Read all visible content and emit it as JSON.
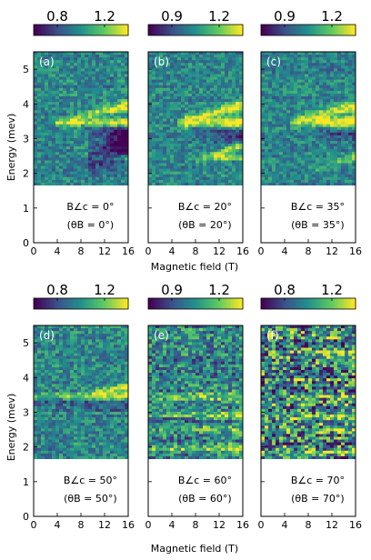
{
  "figure": {
    "xlabel": "Magnetic field (T)",
    "ylabel": "Energy (mev)",
    "colormap": [
      "#440154",
      "#3b528b",
      "#21918c",
      "#5ec962",
      "#fde725"
    ],
    "gap_color": "#ffffff"
  },
  "chart_data": [
    {
      "type": "heatmap",
      "panel_label": "(a)",
      "orientation_text": "B∠c = 0°",
      "theta_text": "(θB = 0°)",
      "xlim": [
        0,
        16
      ],
      "ylim": [
        0,
        5.5
      ],
      "xticks": [
        0,
        4,
        8,
        12,
        16
      ],
      "yticks": [
        0,
        1,
        2,
        3,
        4,
        5
      ],
      "data_range_y": [
        1.65,
        5.5
      ],
      "colorbar": {
        "ticks": [
          0.8,
          1.2
        ],
        "tick_labels": [
          "0.8",
          "1.2"
        ],
        "range": [
          0.6,
          1.4
        ]
      },
      "features": [
        {
          "kind": "band",
          "y0": 3.45,
          "y1": 3.45,
          "x_from": 4,
          "strength": 0.85,
          "width": 0.1
        },
        {
          "kind": "band",
          "y0": 3.55,
          "y1": 3.95,
          "x_from": 6,
          "strength": 0.6,
          "width": 0.12
        },
        {
          "kind": "dark",
          "y0": 3.4,
          "y1": 3.2,
          "x_from": 8,
          "strength": 0.4,
          "width": 0.25
        },
        {
          "kind": "dark",
          "y0": 2.3,
          "y1": 2.9,
          "x_from": 9,
          "strength": 0.5,
          "width": 0.35
        },
        {
          "kind": "band",
          "y0": 2.45,
          "y1": 2.45,
          "x_from": 10,
          "strength": 0.45,
          "width": 0.05
        }
      ],
      "noise": 0.35
    },
    {
      "type": "heatmap",
      "panel_label": "(b)",
      "orientation_text": "B∠c = 20°",
      "theta_text": "(θB = 20°)",
      "xlim": [
        0,
        16
      ],
      "ylim": [
        0,
        5.5
      ],
      "xticks": [
        0,
        4,
        8,
        12,
        16
      ],
      "yticks": [
        0,
        1,
        2,
        3,
        4,
        5
      ],
      "data_range_y": [
        1.65,
        5.5
      ],
      "colorbar": {
        "ticks": [
          0.9,
          1.2
        ],
        "tick_labels": [
          "0.9",
          "1.2"
        ],
        "range": [
          0.75,
          1.35
        ]
      },
      "features": [
        {
          "kind": "band",
          "y0": 3.45,
          "y1": 3.45,
          "x_from": 5,
          "strength": 0.95,
          "width": 0.12
        },
        {
          "kind": "band",
          "y0": 3.55,
          "y1": 3.95,
          "x_from": 6,
          "strength": 0.6,
          "width": 0.12
        },
        {
          "kind": "dark",
          "y0": 3.4,
          "y1": 3.2,
          "x_from": 7,
          "strength": 0.4,
          "width": 0.25
        },
        {
          "kind": "band",
          "y0": 2.35,
          "y1": 2.8,
          "x_from": 8,
          "strength": 0.55,
          "width": 0.1
        },
        {
          "kind": "band",
          "y0": 2.45,
          "y1": 2.45,
          "x_from": 11,
          "strength": 0.7,
          "width": 0.05
        }
      ],
      "noise": 0.35
    },
    {
      "type": "heatmap",
      "panel_label": "(c)",
      "orientation_text": "B∠c = 35°",
      "theta_text": "(θB = 35°)",
      "xlim": [
        0,
        16
      ],
      "ylim": [
        0,
        5.5
      ],
      "xticks": [
        0,
        4,
        8,
        12,
        16
      ],
      "yticks": [
        0,
        1,
        2,
        3,
        4,
        5
      ],
      "data_range_y": [
        1.65,
        5.5
      ],
      "colorbar": {
        "ticks": [
          0.9,
          1.2
        ],
        "tick_labels": [
          "0.9",
          "1.2"
        ],
        "range": [
          0.75,
          1.35
        ]
      },
      "features": [
        {
          "kind": "band",
          "y0": 3.45,
          "y1": 3.45,
          "x_from": 5,
          "strength": 0.95,
          "width": 0.12
        },
        {
          "kind": "band",
          "y0": 3.55,
          "y1": 3.95,
          "x_from": 6,
          "strength": 0.6,
          "width": 0.12
        },
        {
          "kind": "dark",
          "y0": 3.4,
          "y1": 3.25,
          "x_from": 7,
          "strength": 0.35,
          "width": 0.2
        },
        {
          "kind": "band",
          "y0": 2.1,
          "y1": 2.5,
          "x_from": 9,
          "strength": 0.4,
          "width": 0.1
        }
      ],
      "noise": 0.35
    },
    {
      "type": "heatmap",
      "panel_label": "(d)",
      "orientation_text": "B∠c = 50°",
      "theta_text": "(θB = 50°)",
      "xlim": [
        0,
        16
      ],
      "ylim": [
        0,
        5.5
      ],
      "xticks": [
        0,
        4,
        8,
        12,
        16
      ],
      "yticks": [
        0,
        1,
        2,
        3,
        4,
        5
      ],
      "data_range_y": [
        1.65,
        5.5
      ],
      "colorbar": {
        "ticks": [
          0.8,
          1.2
        ],
        "tick_labels": [
          "0.8",
          "1.2"
        ],
        "range": [
          0.6,
          1.4
        ]
      },
      "features": [
        {
          "kind": "band",
          "y0": 3.45,
          "y1": 3.45,
          "x_from": 0,
          "strength": 0.65,
          "width": 0.1
        },
        {
          "kind": "band",
          "y0": 3.55,
          "y1": 3.75,
          "x_from": 10,
          "strength": 0.5,
          "width": 0.1
        },
        {
          "kind": "dark",
          "y0": 3.3,
          "y1": 3.3,
          "x_from": 0,
          "strength": 0.3,
          "width": 0.15
        }
      ],
      "noise": 0.4
    },
    {
      "type": "heatmap",
      "panel_label": "(e)",
      "orientation_text": "B∠c = 60°",
      "theta_text": "(θB = 60°)",
      "xlim": [
        0,
        16
      ],
      "ylim": [
        0,
        5.5
      ],
      "xticks": [
        0,
        4,
        8,
        12,
        16
      ],
      "yticks": [
        0,
        1,
        2,
        3,
        4,
        5
      ],
      "data_range_y": [
        1.65,
        5.5
      ],
      "colorbar": {
        "ticks": [
          0.9,
          1.2
        ],
        "tick_labels": [
          "0.9",
          "1.2"
        ],
        "range": [
          0.75,
          1.35
        ]
      },
      "features": [
        {
          "kind": "band",
          "y0": 3.45,
          "y1": 3.45,
          "x_from": 0,
          "strength": 0.45,
          "width": 0.1
        },
        {
          "kind": "band",
          "y0": 2.9,
          "y1": 2.9,
          "x_from": 0,
          "strength": 0.3,
          "width": 0.08
        },
        {
          "kind": "band",
          "y0": 2.5,
          "y1": 2.5,
          "x_from": 0,
          "strength": 0.3,
          "width": 0.08
        },
        {
          "kind": "band",
          "y0": 1.95,
          "y1": 1.95,
          "x_from": 0,
          "strength": 0.45,
          "width": 0.08
        }
      ],
      "noise": 0.6
    },
    {
      "type": "heatmap",
      "panel_label": "(f)",
      "orientation_text": "B∠c = 70°",
      "theta_text": "(θB = 70°)",
      "xlim": [
        0,
        16
      ],
      "ylim": [
        0,
        5.5
      ],
      "xticks": [
        0,
        4,
        8,
        12,
        16
      ],
      "yticks": [
        0,
        1,
        2,
        3,
        4,
        5
      ],
      "data_range_y": [
        1.65,
        5.5
      ],
      "colorbar": {
        "ticks": [
          0.8,
          1.2
        ],
        "tick_labels": [
          "0.8",
          "1.2"
        ],
        "range": [
          0.6,
          1.4
        ]
      },
      "features": [
        {
          "kind": "band",
          "y0": 4.75,
          "y1": 4.75,
          "x_from": 0,
          "strength": 0.4,
          "width": 0.06
        },
        {
          "kind": "band",
          "y0": 3.45,
          "y1": 3.45,
          "x_from": 0,
          "strength": 0.35,
          "width": 0.08
        },
        {
          "kind": "band",
          "y0": 2.85,
          "y1": 2.85,
          "x_from": 0,
          "strength": 0.4,
          "width": 0.06
        },
        {
          "kind": "band",
          "y0": 2.45,
          "y1": 2.45,
          "x_from": 0,
          "strength": 0.35,
          "width": 0.06
        },
        {
          "kind": "band",
          "y0": 1.85,
          "y1": 1.85,
          "x_from": 0,
          "strength": 0.45,
          "width": 0.06
        }
      ],
      "noise": 0.95
    }
  ]
}
